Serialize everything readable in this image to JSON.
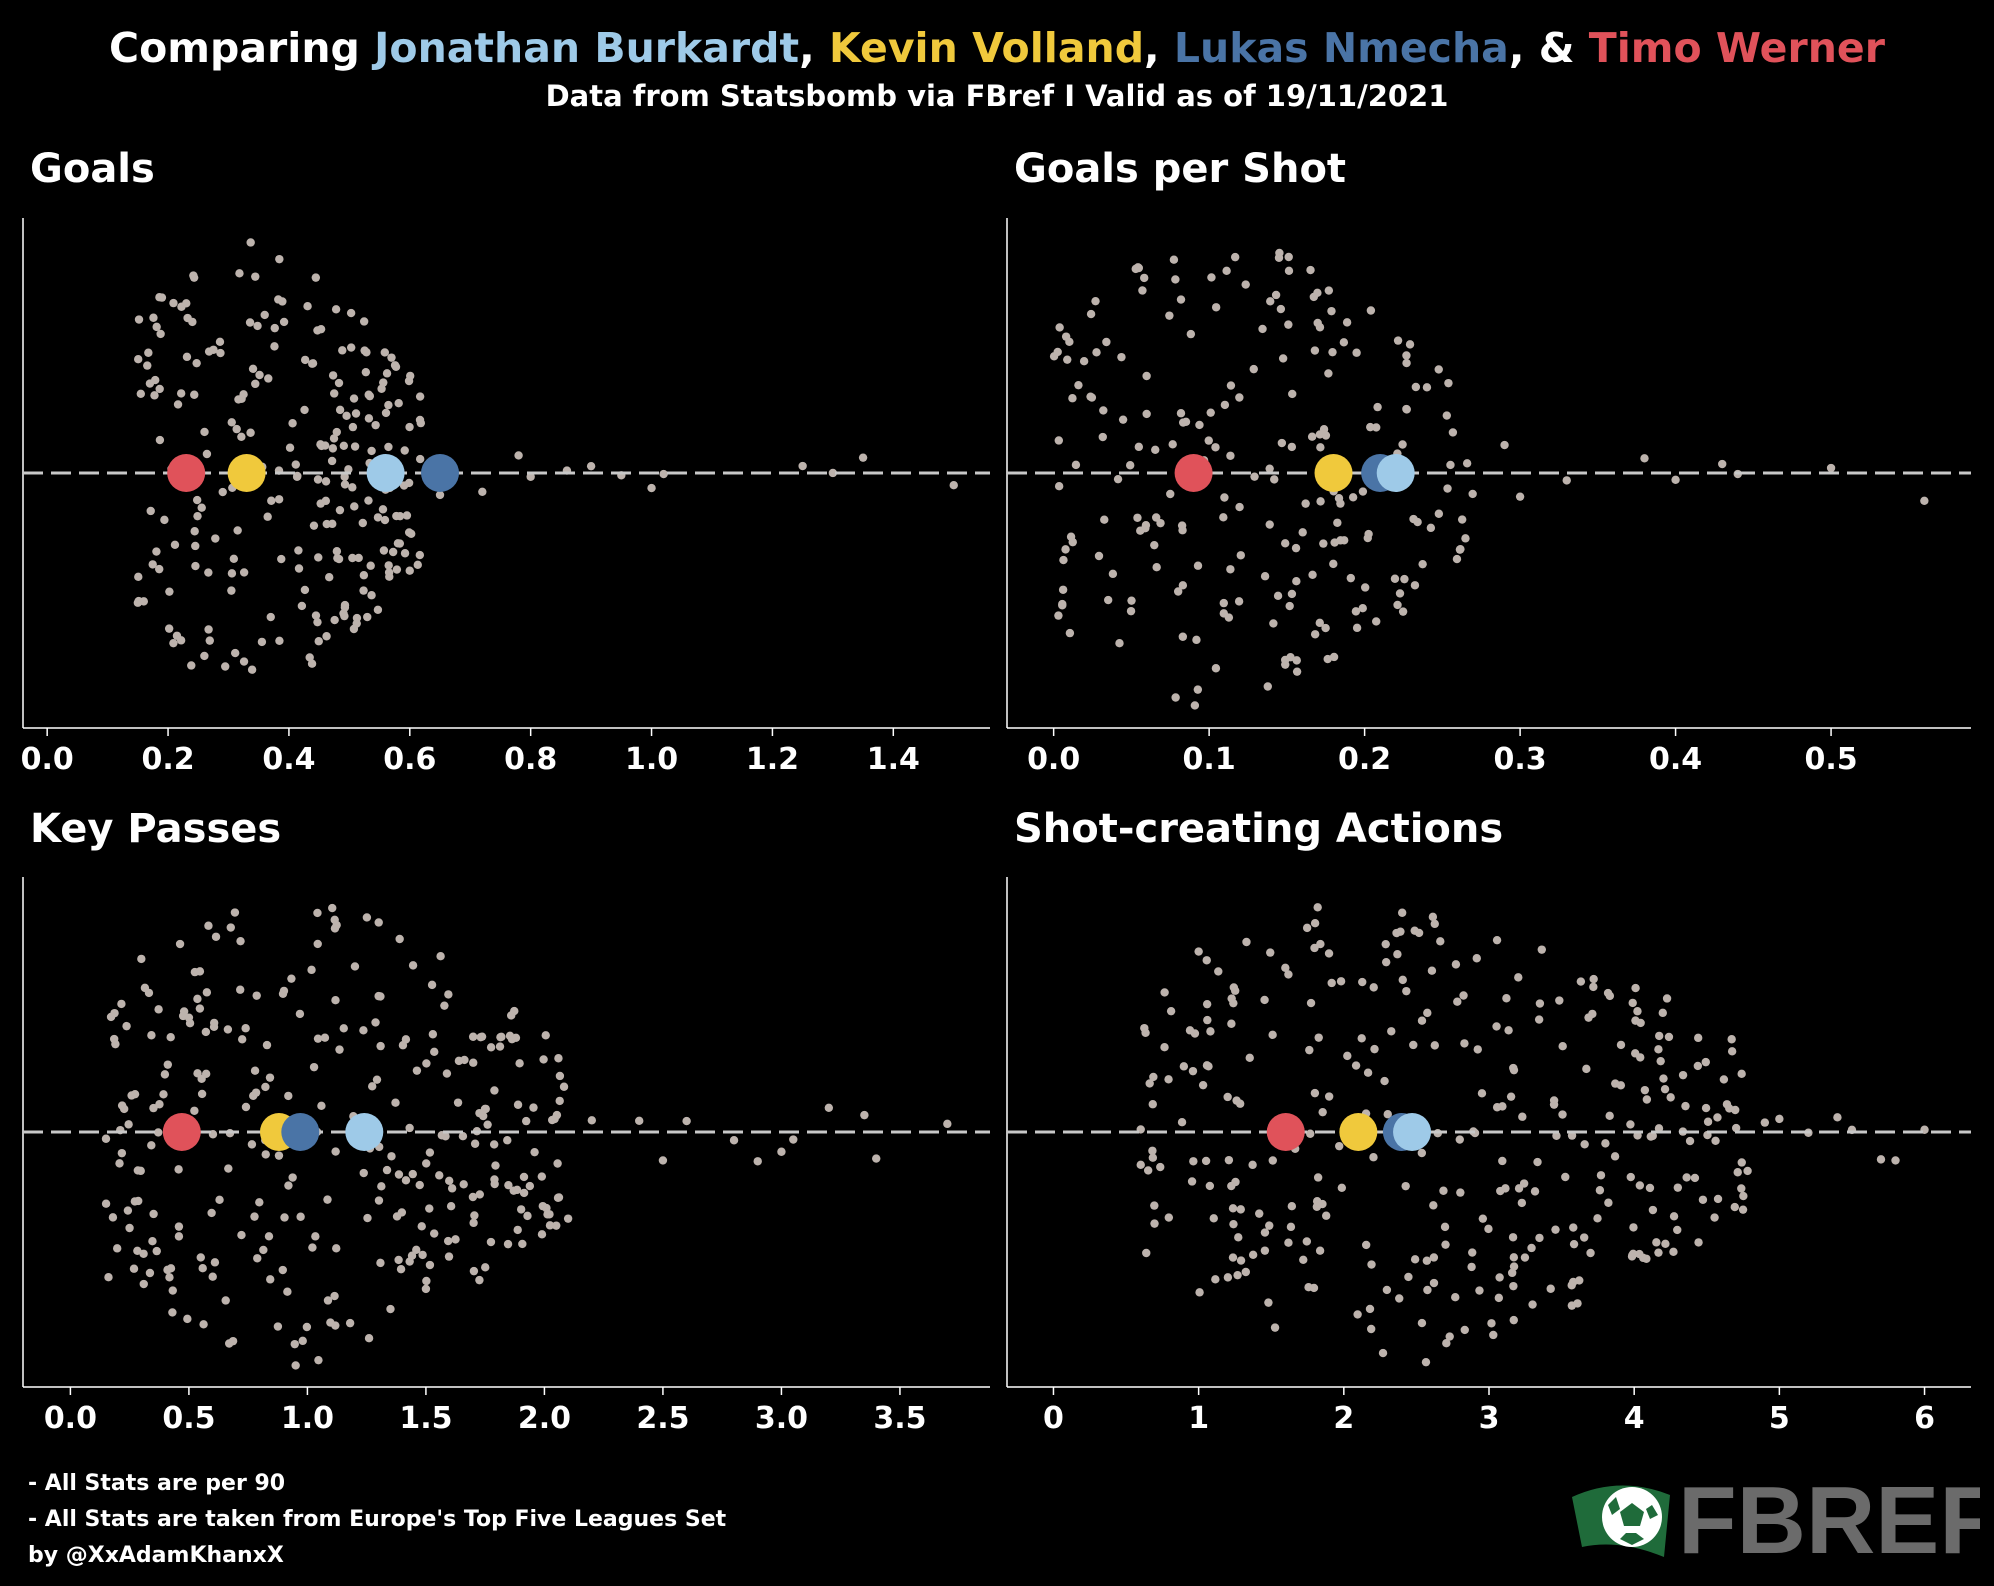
{
  "title": {
    "prefix": "Comparing ",
    "players": [
      {
        "name": "Jonathan Burkardt",
        "color": "#9ecae8",
        "sep": ", "
      },
      {
        "name": "Kevin Volland",
        "color": "#f0c93c",
        "sep": ", "
      },
      {
        "name": "Lukas Nmecha",
        "color": "#4a74a6",
        "sep": ", & "
      },
      {
        "name": "Timo Werner",
        "color": "#e0525a",
        "sep": ""
      }
    ]
  },
  "subtitle": "Data from Statsbomb via FBref I Valid as of 19/11/2021",
  "footnotes": [
    "- All Stats are per 90",
    "- All Stats are taken from Europe's Top Five Leagues Set",
    "by @XxAdamKhanxX"
  ],
  "logo": {
    "text": "FBREF",
    "icon": "soccer-ball-flag-icon",
    "color": "#6b6b6b"
  },
  "colors": {
    "background": "#000000",
    "dots": "#bdb3ad",
    "midline": "#c8c8c8",
    "axis": "#ffffff"
  },
  "chart_data": [
    {
      "type": "scatter",
      "subtype": "beeswarm",
      "title": "Goals",
      "xlim": [
        -0.04,
        1.56
      ],
      "ticks": [
        0.0,
        0.2,
        0.4,
        0.6,
        0.8,
        1.0,
        1.2,
        1.4
      ],
      "tick_labels": [
        "0.0",
        "0.2",
        "0.4",
        "0.6",
        "0.8",
        "1.0",
        "1.2",
        "1.4"
      ],
      "distribution": {
        "count": 240,
        "bulk_min": 0.15,
        "bulk_max": 0.62,
        "tail": [
          0.65,
          0.72,
          0.78,
          0.8,
          0.86,
          0.9,
          0.95,
          1.0,
          1.02,
          1.25,
          1.3,
          1.35,
          1.5
        ]
      },
      "players": [
        {
          "name": "Timo Werner",
          "value": 0.23
        },
        {
          "name": "Kevin Volland",
          "value": 0.33
        },
        {
          "name": "Jonathan Burkardt",
          "value": 0.56
        },
        {
          "name": "Lukas Nmecha",
          "value": 0.65
        }
      ]
    },
    {
      "type": "scatter",
      "subtype": "beeswarm",
      "title": "Goals per Shot",
      "xlim": [
        -0.03,
        0.59
      ],
      "ticks": [
        0.0,
        0.1,
        0.2,
        0.3,
        0.4,
        0.5
      ],
      "tick_labels": [
        "0.0",
        "0.1",
        "0.2",
        "0.3",
        "0.4",
        "0.5"
      ],
      "distribution": {
        "count": 220,
        "bulk_min": 0.0,
        "bulk_max": 0.27,
        "tail": [
          0.29,
          0.3,
          0.33,
          0.38,
          0.4,
          0.43,
          0.44,
          0.5,
          0.56
        ]
      },
      "players": [
        {
          "name": "Timo Werner",
          "value": 0.09
        },
        {
          "name": "Kevin Volland",
          "value": 0.18
        },
        {
          "name": "Lukas Nmecha",
          "value": 0.21
        },
        {
          "name": "Jonathan Burkardt",
          "value": 0.22
        }
      ]
    },
    {
      "type": "scatter",
      "subtype": "beeswarm",
      "title": "Key Passes",
      "xlim": [
        -0.2,
        3.88
      ],
      "ticks": [
        0.0,
        0.5,
        1.0,
        1.5,
        2.0,
        2.5,
        3.0,
        3.5
      ],
      "tick_labels": [
        "0.0",
        "0.5",
        "1.0",
        "1.5",
        "2.0",
        "2.5",
        "3.0",
        "3.5"
      ],
      "distribution": {
        "count": 300,
        "bulk_min": 0.15,
        "bulk_max": 2.1,
        "tail": [
          2.2,
          2.4,
          2.5,
          2.6,
          2.8,
          2.9,
          3.0,
          3.05,
          3.2,
          3.35,
          3.4,
          3.7
        ]
      },
      "players": [
        {
          "name": "Timo Werner",
          "value": 0.47
        },
        {
          "name": "Kevin Volland",
          "value": 0.88
        },
        {
          "name": "Lukas Nmecha",
          "value": 0.97
        },
        {
          "name": "Jonathan Burkardt",
          "value": 1.24
        }
      ]
    },
    {
      "type": "scatter",
      "subtype": "beeswarm",
      "title": "Shot-creating Actions",
      "xlim": [
        -0.32,
        6.32
      ],
      "ticks": [
        0,
        1,
        2,
        3,
        4,
        5,
        6
      ],
      "tick_labels": [
        "0",
        "1",
        "2",
        "3",
        "4",
        "5",
        "6"
      ],
      "distribution": {
        "count": 330,
        "bulk_min": 0.6,
        "bulk_max": 4.8,
        "tail": [
          4.9,
          5.0,
          5.2,
          5.4,
          5.5,
          5.7,
          5.8,
          6.0
        ]
      },
      "players": [
        {
          "name": "Timo Werner",
          "value": 1.6
        },
        {
          "name": "Kevin Volland",
          "value": 2.1
        },
        {
          "name": "Lukas Nmecha",
          "value": 2.4
        },
        {
          "name": "Jonathan Burkardt",
          "value": 2.47
        }
      ]
    }
  ]
}
